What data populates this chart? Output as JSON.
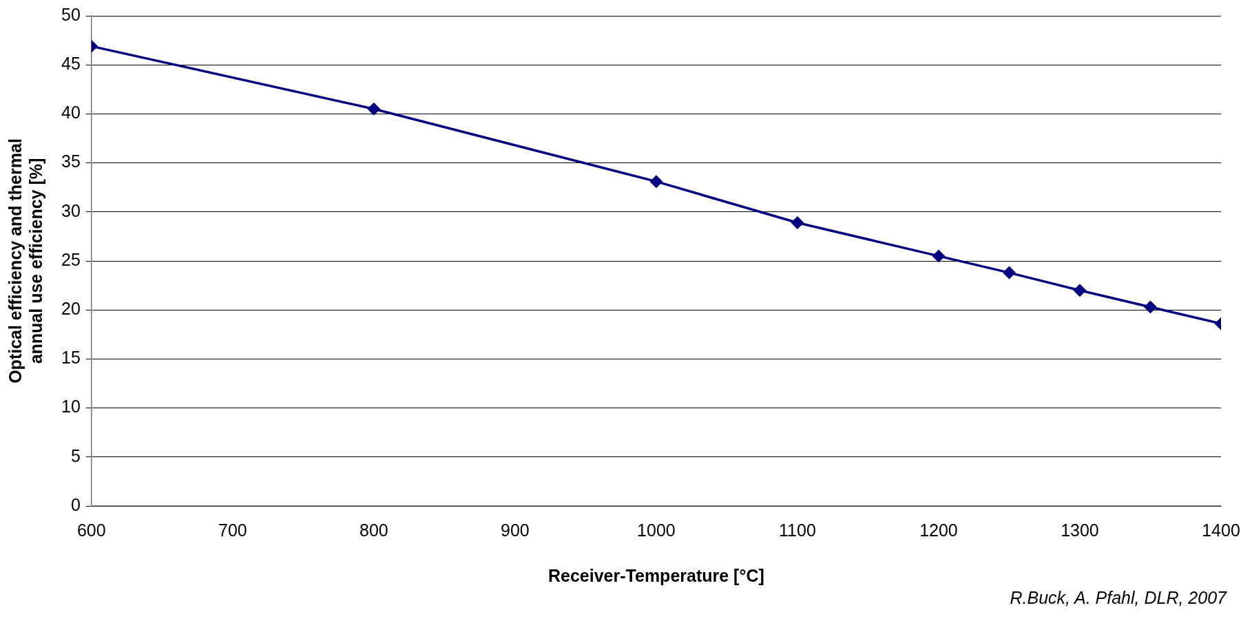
{
  "chart_data": {
    "type": "line",
    "xlabel": "Receiver-Temperature [°C]",
    "ylabel": "Optical efficiency and thermal annual use efficiency [%]",
    "annotations": [
      "R.Buck, A. Pfahl, DLR, 2007"
    ],
    "x": [
      600,
      800,
      1000,
      1100,
      1200,
      1250,
      1300,
      1350,
      1400
    ],
    "series": [
      {
        "color": "#000080",
        "values": [
          46.9,
          40.5,
          33.1,
          28.9,
          25.5,
          23.8,
          22.0,
          20.3,
          18.6
        ]
      }
    ],
    "xlim": [
      600,
      1400
    ],
    "xticks": [
      600,
      700,
      800,
      900,
      1000,
      1100,
      1200,
      1300,
      1400
    ],
    "ylim": [
      0,
      50
    ],
    "yticks": [
      0,
      5,
      10,
      15,
      20,
      25,
      30,
      35,
      40,
      45,
      50
    ],
    "grid": "y",
    "legend": false,
    "marker": "diamond",
    "line_style": "solid"
  }
}
